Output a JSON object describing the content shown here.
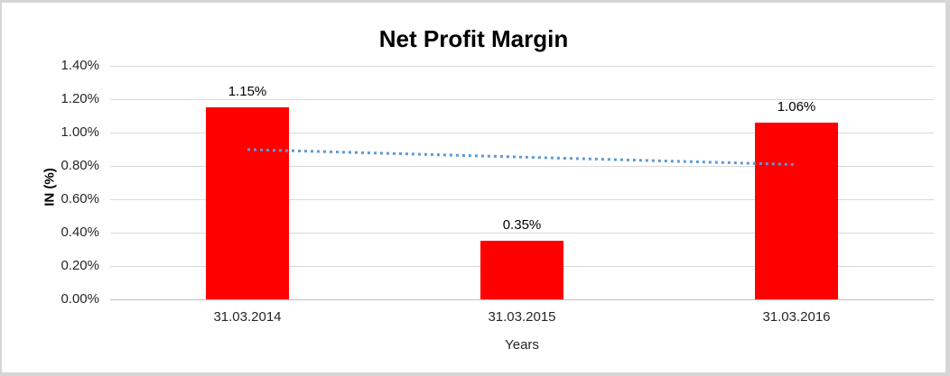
{
  "chart_data": {
    "type": "bar",
    "title": "Net Profit Margin",
    "xlabel": "Years",
    "ylabel": "IN (%)",
    "categories": [
      "31.03.2014",
      "31.03.2015",
      "31.03.2016"
    ],
    "series": [
      {
        "name": "Net Profit Margin",
        "values": [
          1.15,
          0.35,
          1.06
        ]
      }
    ],
    "data_labels": [
      "1.15%",
      "0.35%",
      "1.06%"
    ],
    "ylim": [
      0,
      1.4
    ],
    "ytick_step": 0.2,
    "ytick_labels": [
      "0.00%",
      "0.20%",
      "0.40%",
      "0.60%",
      "0.80%",
      "1.00%",
      "1.20%",
      "1.40%"
    ],
    "grid": true,
    "legend": "none",
    "bar_color": "#ff0000",
    "gridline_color": "#d9d9d9",
    "axis_line_color": "#bfbfbf",
    "frame_border_color": "#d6d6d6",
    "trendline": {
      "style": "dotted",
      "color": "#5b9bd5",
      "start_value": 0.898,
      "end_value": 0.808
    }
  }
}
